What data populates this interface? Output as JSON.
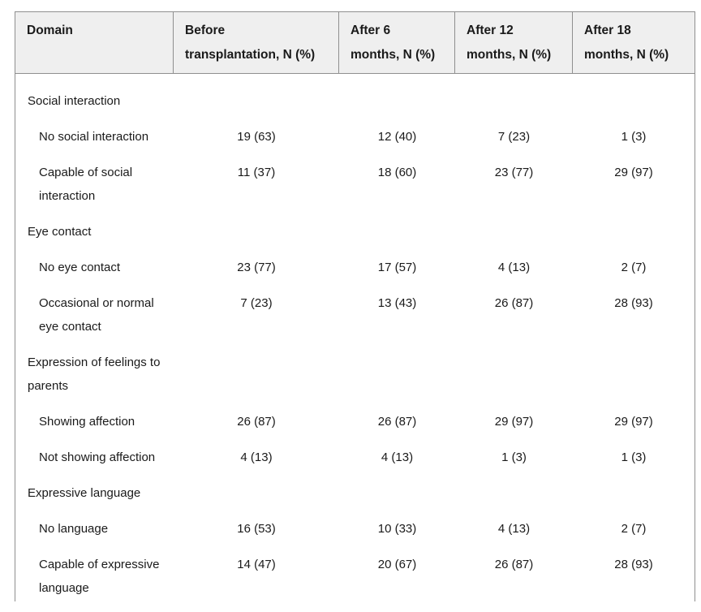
{
  "table": {
    "header": [
      {
        "lines": [
          "Domain"
        ]
      },
      {
        "lines": [
          "Before",
          "transplantation, N (%)"
        ]
      },
      {
        "lines": [
          "After 6",
          "months, N (%)"
        ]
      },
      {
        "lines": [
          "After 12",
          "months, N (%)"
        ]
      },
      {
        "lines": [
          "After 18",
          "months, N (%)"
        ]
      }
    ],
    "rows": [
      {
        "type": "category",
        "label_lines": [
          "Social interaction"
        ],
        "values": [
          "",
          "",
          "",
          ""
        ]
      },
      {
        "type": "sub",
        "label_lines": [
          "No social interaction"
        ],
        "values": [
          "19 (63)",
          "12 (40)",
          "7 (23)",
          "1 (3)"
        ]
      },
      {
        "type": "sub",
        "label_lines": [
          "Capable of social",
          "interaction"
        ],
        "values": [
          "11 (37)",
          "18 (60)",
          "23 (77)",
          "29 (97)"
        ]
      },
      {
        "type": "category",
        "label_lines": [
          "Eye contact"
        ],
        "values": [
          "",
          "",
          "",
          ""
        ]
      },
      {
        "type": "sub",
        "label_lines": [
          "No eye contact"
        ],
        "values": [
          "23 (77)",
          "17 (57)",
          "4 (13)",
          "2 (7)"
        ]
      },
      {
        "type": "sub",
        "label_lines": [
          "Occasional or normal",
          "eye contact"
        ],
        "values": [
          "7 (23)",
          "13 (43)",
          "26 (87)",
          "28 (93)"
        ]
      },
      {
        "type": "category",
        "label_lines": [
          "Expression of feelings to",
          "parents"
        ],
        "values": [
          "",
          "",
          "",
          ""
        ]
      },
      {
        "type": "sub",
        "label_lines": [
          "Showing affection"
        ],
        "values": [
          "26 (87)",
          "26 (87)",
          "29 (97)",
          "29 (97)"
        ]
      },
      {
        "type": "sub",
        "label_lines": [
          "Not showing affection"
        ],
        "values": [
          "4 (13)",
          "4 (13)",
          "1 (3)",
          "1 (3)"
        ]
      },
      {
        "type": "category",
        "label_lines": [
          "Expressive language"
        ],
        "values": [
          "",
          "",
          "",
          ""
        ]
      },
      {
        "type": "sub",
        "label_lines": [
          "No language"
        ],
        "values": [
          "16 (53)",
          "10 (33)",
          "4 (13)",
          "2 (7)"
        ]
      },
      {
        "type": "sub",
        "label_lines": [
          "Capable of expressive",
          "language"
        ],
        "values": [
          "14 (47)",
          "20 (67)",
          "26 (87)",
          "28 (93)"
        ]
      }
    ]
  },
  "colors": {
    "header_bg": "#efefef",
    "border": "#8f8f8f",
    "text": "#1a1a1a"
  }
}
